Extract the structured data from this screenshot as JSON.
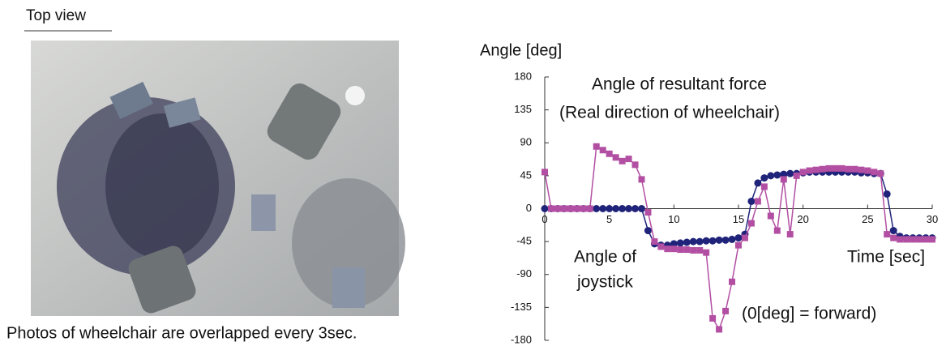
{
  "figure_label": "Top view",
  "caption": "Photos of wheelchair are overlapped every 3sec.",
  "chart_data": {
    "type": "line",
    "y_label": "Angle [deg]",
    "x_label": "Time [sec]",
    "annotations": [
      "Angle of resultant force",
      "(Real direction of wheelchair)",
      "Angle of",
      "joystick",
      "(0[deg] = forward)"
    ],
    "x": [
      0,
      0.5,
      1,
      1.5,
      2,
      2.5,
      3,
      3.5,
      4,
      4.5,
      5,
      5.5,
      6,
      6.5,
      7,
      7.5,
      8,
      8.5,
      9,
      9.5,
      10,
      10.5,
      11,
      11.5,
      12,
      12.5,
      13,
      13.5,
      14,
      14.5,
      15,
      15.5,
      16,
      16.5,
      17,
      17.5,
      18,
      18.5,
      19,
      19.5,
      20,
      20.5,
      21,
      21.5,
      22,
      22.5,
      23,
      23.5,
      24,
      24.5,
      25,
      25.5,
      26,
      26.5,
      27,
      27.5,
      28,
      28.5,
      29,
      29.5,
      30
    ],
    "series": [
      {
        "color": "#1f237a",
        "marker": "circle",
        "values": [
          0,
          0,
          0,
          0,
          0,
          0,
          0,
          0,
          0,
          0,
          0,
          0,
          0,
          0,
          0,
          0,
          -30,
          -48,
          -50,
          -50,
          -48,
          -47,
          -46,
          -45,
          -45,
          -44,
          -44,
          -43,
          -43,
          -42,
          -40,
          -35,
          10,
          35,
          42,
          45,
          46,
          47,
          48,
          48,
          49,
          50,
          50,
          50,
          50,
          50,
          50,
          50,
          50,
          49,
          49,
          48,
          48,
          20,
          -30,
          -38,
          -40,
          -40,
          -40,
          -40,
          -40
        ]
      },
      {
        "color": "#b24fa3",
        "marker": "square",
        "values": [
          50,
          0,
          0,
          0,
          0,
          0,
          0,
          0,
          85,
          80,
          75,
          70,
          65,
          68,
          60,
          40,
          -5,
          -45,
          -52,
          -55,
          -55,
          -56,
          -56,
          -57,
          -57,
          -60,
          -150,
          -165,
          -140,
          -100,
          -50,
          -40,
          -20,
          10,
          30,
          -10,
          -30,
          40,
          -35,
          45,
          50,
          52,
          53,
          54,
          55,
          55,
          55,
          54,
          54,
          53,
          52,
          50,
          48,
          -35,
          -40,
          -42,
          -42,
          -42,
          -42,
          -42,
          -42
        ]
      }
    ],
    "xlim": [
      0,
      30
    ],
    "ylim": [
      -180,
      180
    ],
    "xticks": [
      0,
      5,
      10,
      15,
      20,
      25,
      30
    ],
    "yticks": [
      -180,
      -135,
      -90,
      -45,
      0,
      45,
      90,
      135,
      180
    ]
  }
}
